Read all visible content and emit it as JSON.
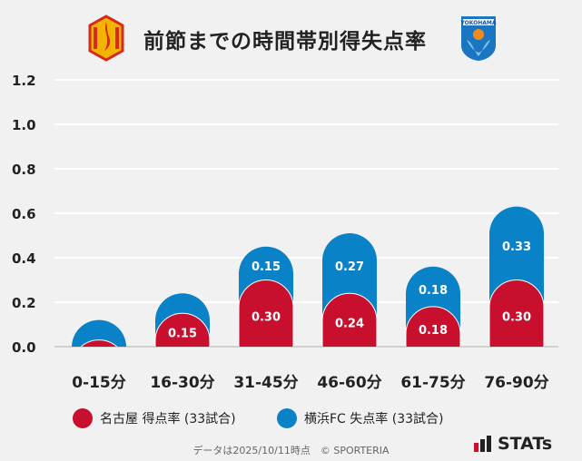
{
  "header": {
    "title": "前節までの時間帯別得失点率",
    "home_logo": "nagoya-grampus-crest",
    "away_logo": "yokohama-fc-crest",
    "away_logo_text": "YOKOHAMA"
  },
  "chart_data": {
    "type": "bar",
    "stacked": true,
    "title": "前節までの時間帯別得失点率",
    "categories": [
      "0-15分",
      "16-30分",
      "31-45分",
      "46-60分",
      "61-75分",
      "76-90分"
    ],
    "series": [
      {
        "name": "名古屋 得点率 (33試合)",
        "color": "#c8102e",
        "values": [
          0.03,
          0.15,
          0.3,
          0.24,
          0.18,
          0.3
        ],
        "labels": [
          "",
          "0.15",
          "0.30",
          "0.24",
          "0.18",
          "0.30"
        ]
      },
      {
        "name": "横浜FC 失点率 (33試合)",
        "color": "#0a82c8",
        "values": [
          0.09,
          0.09,
          0.15,
          0.27,
          0.18,
          0.33
        ],
        "labels": [
          "",
          "",
          "0.15",
          "0.27",
          "0.18",
          "0.33"
        ]
      }
    ],
    "yticks": [
      "0.0",
      "0.2",
      "0.4",
      "0.6",
      "0.8",
      "1.0",
      "1.2"
    ],
    "ylim": [
      0,
      1.2
    ],
    "grid": true,
    "legend": "bottom"
  },
  "legend": {
    "home": "名古屋 得点率 (33試合)",
    "away": "横浜FC 失点率 (33試合)"
  },
  "footer": {
    "note": "データは2025/10/11時点　© SPORTERIA",
    "brand": "STATs"
  }
}
